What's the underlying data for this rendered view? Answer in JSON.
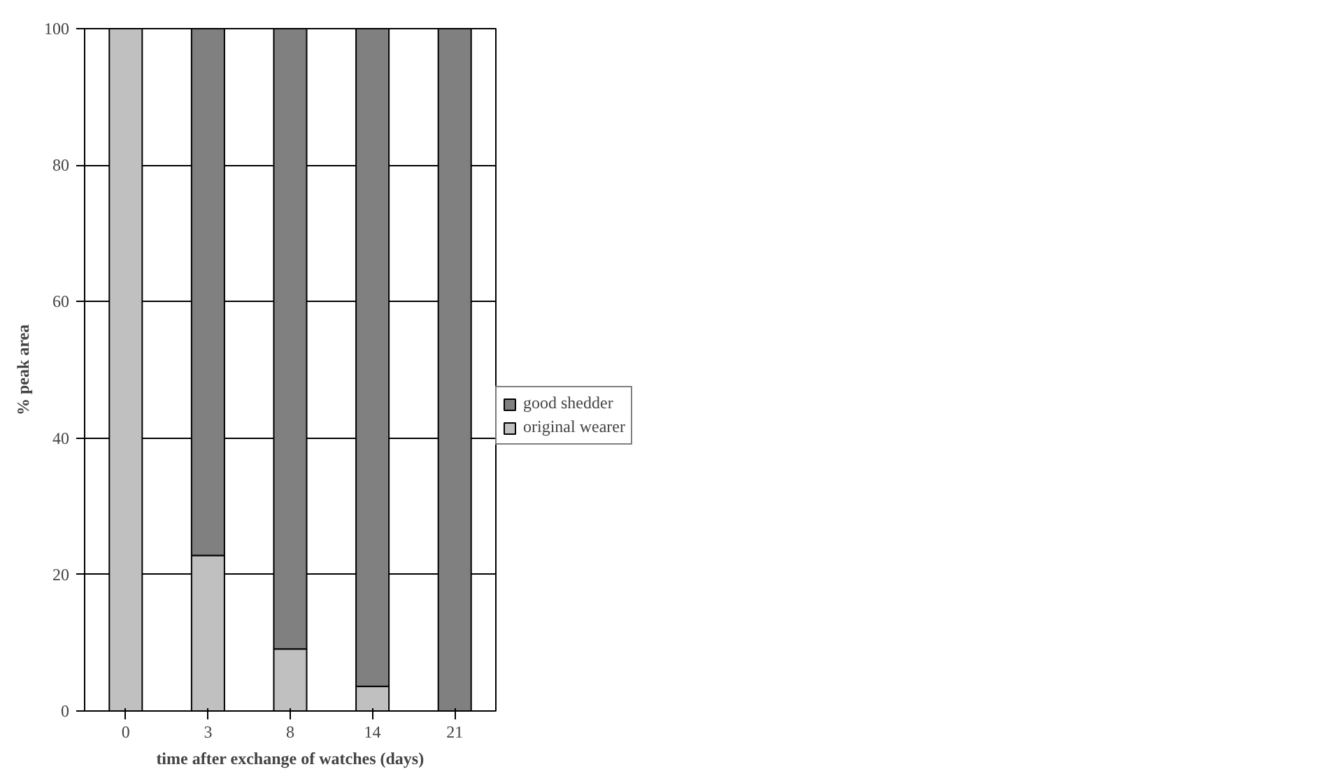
{
  "chart_data": {
    "type": "bar",
    "stacked": true,
    "xlabel": "time after exchange of watches (days)",
    "ylabel": "% peak area",
    "categories": [
      "0",
      "3",
      "8",
      "14",
      "21"
    ],
    "series": [
      {
        "name": "original wearer",
        "color": "#c0c0c0",
        "values": [
          100,
          22.8,
          9.1,
          3.6,
          0
        ]
      },
      {
        "name": "good shedder",
        "color": "#808080",
        "values": [
          0,
          77.2,
          90.9,
          96.4,
          100
        ]
      }
    ],
    "ylim": [
      0,
      100
    ],
    "yticks": [
      0,
      20,
      40,
      60,
      80,
      100
    ],
    "grid": "y",
    "legend": "right"
  }
}
